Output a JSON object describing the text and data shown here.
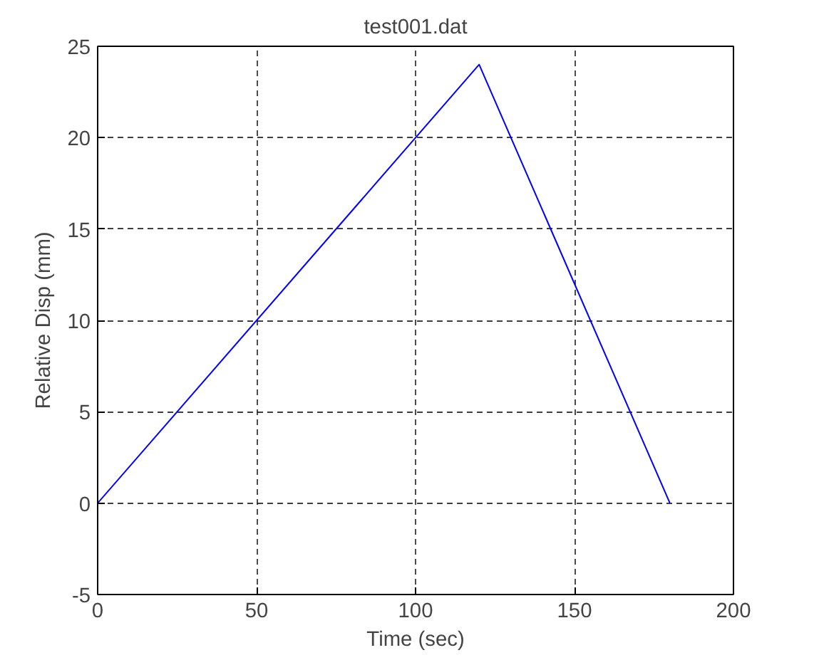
{
  "chart_data": {
    "type": "line",
    "title": "test001.dat",
    "xlabel": "Time (sec)",
    "ylabel": "Relative Disp (mm)",
    "x": [
      0,
      120,
      180
    ],
    "series": [
      {
        "color": "#0000ff",
        "values": [
          0,
          24,
          0
        ]
      }
    ],
    "xlim": [
      0,
      200
    ],
    "xticks": [
      0,
      50,
      100,
      150,
      200
    ],
    "ylim": [
      -5,
      25
    ],
    "yticks": [
      -5,
      0,
      5,
      10,
      15,
      20,
      25
    ],
    "grid": true,
    "marker": "none",
    "line_style": "solid"
  }
}
